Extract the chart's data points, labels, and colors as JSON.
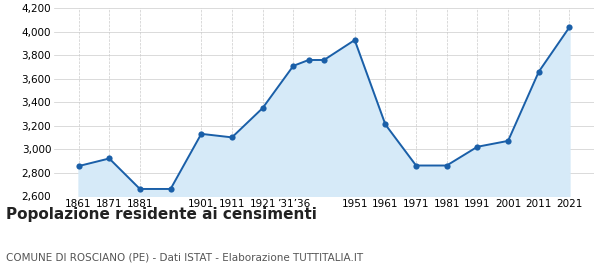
{
  "x_positions": [
    1861,
    1871,
    1881,
    1891,
    1901,
    1911,
    1921,
    1931,
    1936,
    1941,
    1951,
    1961,
    1971,
    1981,
    1991,
    2001,
    2011,
    2021
  ],
  "values": [
    2855,
    2920,
    2660,
    2660,
    3130,
    3100,
    3350,
    3710,
    3760,
    3760,
    3930,
    3210,
    2860,
    2860,
    3020,
    3070,
    3660,
    4040
  ],
  "xtick_positions": [
    1861,
    1871,
    1881,
    1901,
    1911,
    1921,
    1931,
    1951,
    1961,
    1971,
    1981,
    1991,
    2001,
    2011,
    2021
  ],
  "xtick_labels": [
    "1861",
    "1871",
    "1881",
    "1901",
    "1911",
    "1921",
    "’31’36",
    "1951",
    "1961",
    "1971",
    "1981",
    "1991",
    "2001",
    "2011",
    "2021"
  ],
  "ylim": [
    2600,
    4200
  ],
  "yticks": [
    2600,
    2800,
    3000,
    3200,
    3400,
    3600,
    3800,
    4000,
    4200
  ],
  "ytick_labels": [
    "2,600",
    "2,800",
    "3,000",
    "3,200",
    "3,400",
    "3,600",
    "3,800",
    "4,000",
    "4,200"
  ],
  "line_color": "#1a5fa8",
  "fill_color": "#d6eaf8",
  "marker_color": "#1a5fa8",
  "background_color": "#ffffff",
  "grid_color": "#cccccc",
  "title": "Popolazione residente ai censimenti",
  "subtitle": "COMUNE DI ROSCIANO (PE) - Dati ISTAT - Elaborazione TUTTITALIA.IT",
  "title_fontsize": 11,
  "subtitle_fontsize": 7.5,
  "xlim_left": 1853,
  "xlim_right": 2029
}
